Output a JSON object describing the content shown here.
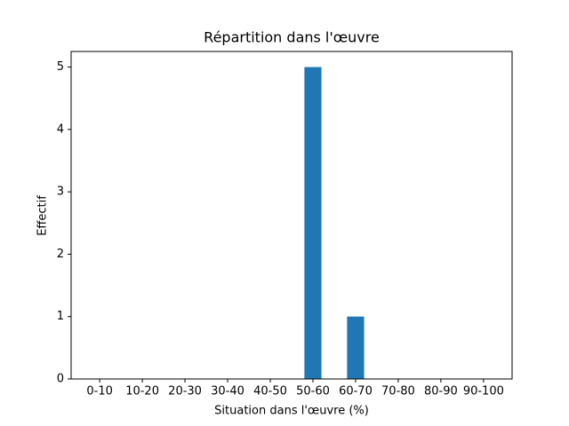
{
  "chart_data": {
    "type": "bar",
    "title": "Répartition dans l'œuvre",
    "x_label": "Situation dans l'œuvre (%)",
    "y_label": "Effectif",
    "categories": [
      "0-10",
      "10-20",
      "20-30",
      "30-40",
      "40-50",
      "50-60",
      "60-70",
      "70-80",
      "80-90",
      "90-100"
    ],
    "values": [
      0,
      0,
      0,
      0,
      0,
      5,
      1,
      0,
      0,
      0
    ],
    "color": "#1f77b4",
    "ylim": [
      0,
      5.25
    ],
    "yticks": [
      0,
      1,
      2,
      3,
      4,
      5
    ],
    "grid": false
  }
}
